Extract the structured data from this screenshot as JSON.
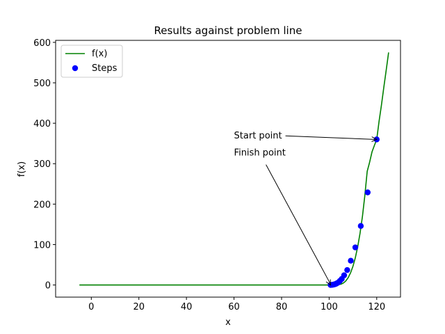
{
  "chart_data": {
    "type": "line",
    "title": "Results against problem line",
    "xlabel": "x",
    "ylabel": "f(x)",
    "xlim": [
      -15,
      130
    ],
    "ylim": [
      -30,
      605
    ],
    "xticks": [
      0,
      20,
      40,
      60,
      80,
      100,
      120
    ],
    "yticks": [
      0,
      100,
      200,
      300,
      400,
      500,
      600
    ],
    "grid": false,
    "legend_placement": "top-left",
    "series": [
      {
        "name": "f(x)",
        "kind": "line",
        "color": "#008000",
        "x": [
          -5,
          0,
          20,
          40,
          60,
          80,
          100,
          101,
          102,
          103,
          104,
          105,
          106,
          107,
          108,
          109,
          110,
          111,
          112,
          113,
          114,
          115,
          116,
          117,
          118,
          119,
          120,
          121,
          122,
          123,
          124,
          125
        ],
        "y": [
          0,
          0,
          0,
          0,
          0,
          0,
          0,
          0,
          0.1,
          0.3,
          1,
          2,
          5,
          10,
          18,
          30,
          46,
          67,
          94,
          128,
          170,
          221,
          281,
          303,
          329,
          345,
          360,
          405,
          445,
          490,
          532,
          575
        ]
      },
      {
        "name": "Steps",
        "kind": "scatter",
        "color": "#0000ff",
        "x": [
          120,
          116.2,
          113.3,
          111.0,
          109.1,
          107.6,
          106.3,
          105.3,
          104.5,
          103.8,
          103.2,
          102.7,
          102.2,
          101.8,
          101.4,
          101.0,
          100.6
        ],
        "y": [
          360,
          229,
          146,
          93,
          60,
          37,
          24,
          15,
          10,
          6,
          4,
          2.5,
          1.5,
          1,
          0.5,
          0.2,
          0
        ]
      }
    ],
    "annotations": [
      {
        "text": "Start point",
        "text_at": [
          60,
          362
        ],
        "arrow_to": [
          120,
          360
        ]
      },
      {
        "text": "Finish point",
        "text_at": [
          60,
          320
        ],
        "arrow_to": [
          100.6,
          0
        ]
      }
    ]
  }
}
